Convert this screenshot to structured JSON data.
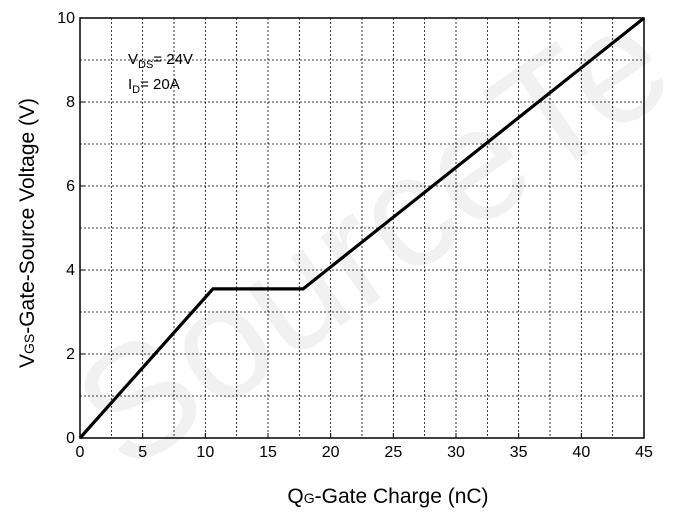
{
  "chart_data": {
    "type": "line",
    "title": "",
    "xlabel": {
      "q": "Q",
      "sub": "G",
      "rest": "-Gate Charge (nC)"
    },
    "ylabel": {
      "v": "V",
      "sub": "GS",
      "rest": "-Gate-Source Voltage (V)"
    },
    "xlim": [
      0,
      45
    ],
    "ylim": [
      0,
      10
    ],
    "xticks": [
      "0",
      "5",
      "10",
      "15",
      "20",
      "25",
      "30",
      "35",
      "40",
      "45"
    ],
    "yticks": [
      "0",
      "2",
      "4",
      "6",
      "8",
      "10"
    ],
    "grid": true,
    "annotations": [
      {
        "main": "V",
        "sub": "DS",
        "tail": "= 24V"
      },
      {
        "main": "I",
        "sub": "D",
        "tail": "= 20A"
      }
    ],
    "series": [
      {
        "color": "#000000",
        "x": [
          0,
          10.6,
          17.8,
          45
        ],
        "y": [
          0,
          3.55,
          3.55,
          10
        ]
      }
    ]
  },
  "watermark": "SourceTe"
}
